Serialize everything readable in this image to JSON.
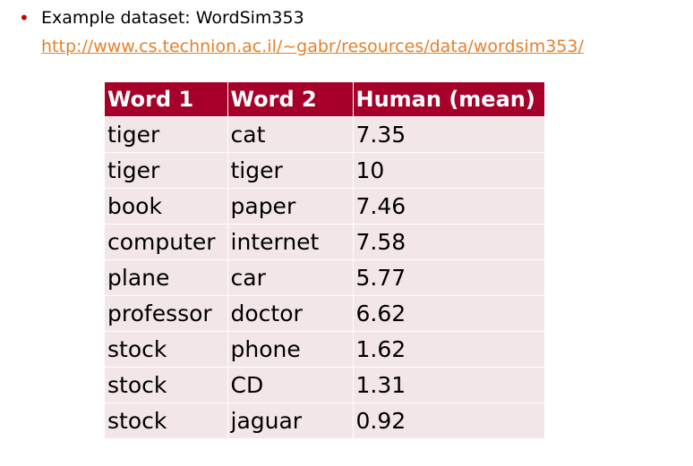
{
  "bullet": {
    "text": "Example dataset: WordSim353",
    "link": "http://www.cs.technion.ac.il/~gabr/resources/data/wordsim353/",
    "bullet_color": "#c00000",
    "link_color": "#e5802a"
  },
  "table": {
    "header_color": "#a6002a",
    "row_color": "#f2e6e8",
    "headers": [
      "Word 1",
      "Word 2",
      "Human (mean)"
    ],
    "rows": [
      [
        "tiger",
        "cat",
        "7.35"
      ],
      [
        "tiger",
        "tiger",
        "10"
      ],
      [
        "book",
        "paper",
        "7.46"
      ],
      [
        "computer",
        "internet",
        "7.58"
      ],
      [
        "plane",
        "car",
        "5.77"
      ],
      [
        "professor",
        "doctor",
        "6.62"
      ],
      [
        "stock",
        "phone",
        "1.62"
      ],
      [
        "stock",
        "CD",
        "1.31"
      ],
      [
        "stock",
        "jaguar",
        "0.92"
      ]
    ]
  }
}
